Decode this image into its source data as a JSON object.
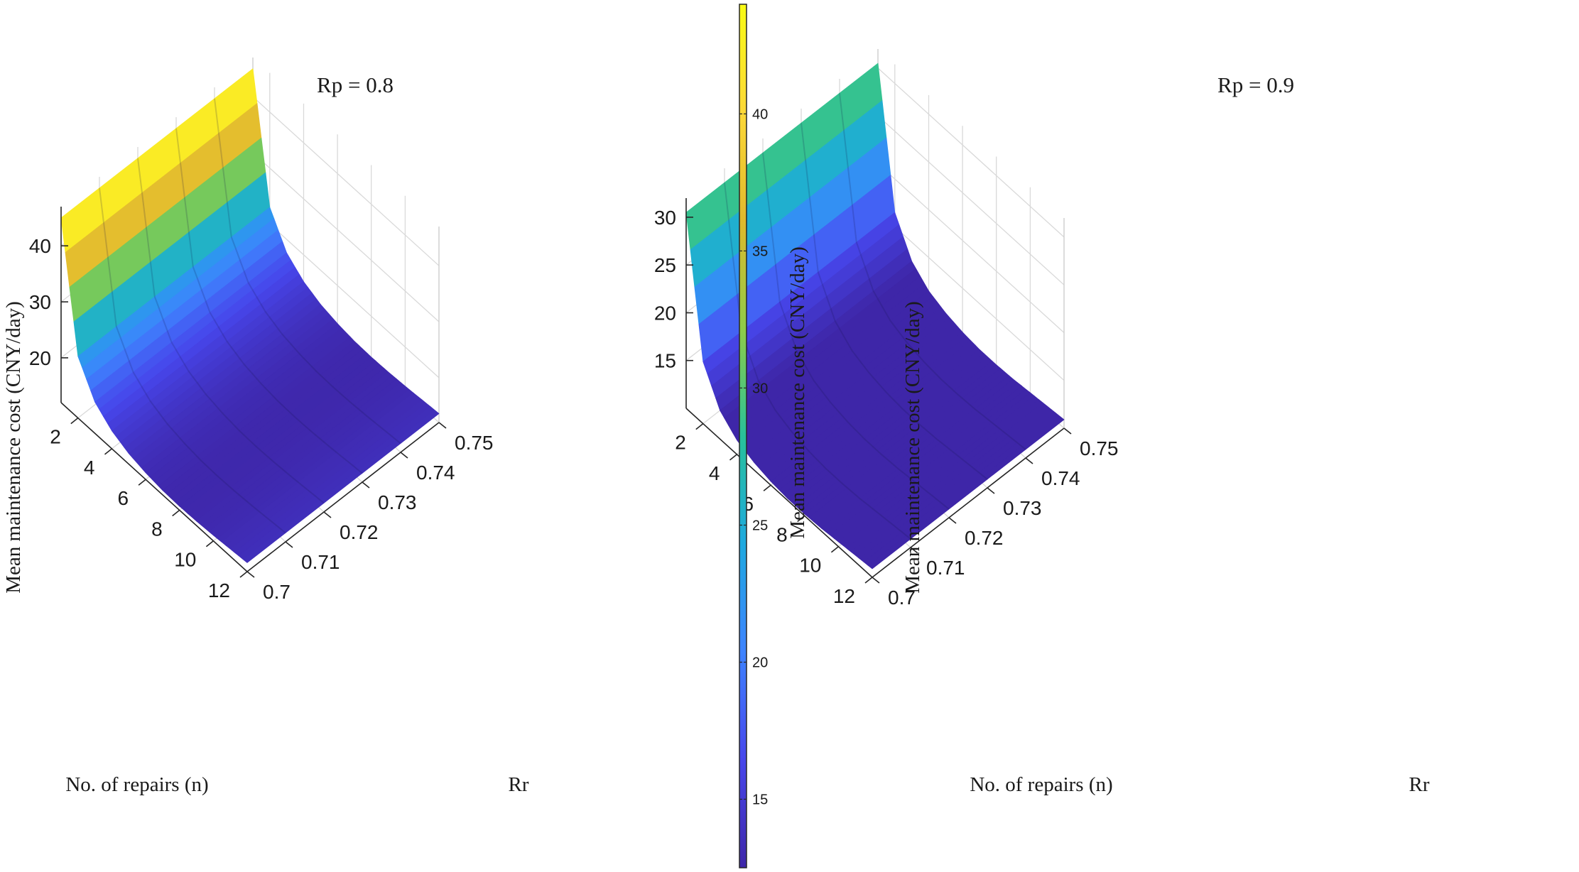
{
  "chart_data": [
    {
      "type": "surface",
      "title": "Rp = 0.8",
      "xlabel": "No. of repairs (n)",
      "ylabel": "Rr",
      "zlabel": "Mean maintenance cost (CNY/day)",
      "n_ticks": [
        "2",
        "4",
        "6",
        "8",
        "10",
        "12"
      ],
      "rr_ticks": [
        "0.7",
        "0.71",
        "0.72",
        "0.73",
        "0.74",
        "0.75"
      ],
      "z_ticks": [
        "20",
        "30",
        "40"
      ],
      "n_range": [
        1,
        12
      ],
      "rr_range": [
        0.7,
        0.75
      ],
      "z_range": [
        12,
        47
      ],
      "surface": {
        "n": [
          1,
          2,
          3,
          4,
          5,
          6,
          7,
          8,
          9,
          10,
          11,
          12
        ],
        "rr": [
          0.7,
          0.71,
          0.72,
          0.73,
          0.74,
          0.75
        ],
        "cost": [
          45,
          23,
          17.6,
          15.2,
          13.9,
          13.2,
          12.8,
          12.7,
          12.8,
          13.0,
          13.3,
          13.6
        ]
      }
    },
    {
      "type": "surface",
      "title": "Rp = 0.9",
      "xlabel": "No. of repairs (n)",
      "ylabel": "Rr",
      "zlabel": "Mean maintenance cost (CNY/day)",
      "n_ticks": [
        "2",
        "4",
        "6",
        "8",
        "10",
        "12"
      ],
      "rr_ticks": [
        "0.7",
        "0.71",
        "0.72",
        "0.73",
        "0.74",
        "0.75"
      ],
      "z_ticks": [
        "15",
        "20",
        "25",
        "30"
      ],
      "n_range": [
        1,
        12
      ],
      "rr_range": [
        0.7,
        0.75
      ],
      "z_range": [
        10,
        32
      ],
      "surface": {
        "n": [
          1,
          2,
          3,
          4,
          5,
          6,
          7,
          8,
          9,
          10,
          11,
          12
        ],
        "rr": [
          0.7,
          0.71,
          0.72,
          0.73,
          0.74,
          0.75
        ],
        "cost": [
          30.5,
          16.5,
          13.0,
          11.5,
          10.8,
          10.4,
          10.2,
          10.2,
          10.3,
          10.5,
          10.7,
          10.9
        ]
      }
    }
  ],
  "colorbar": {
    "label": "Mean maintenance cost (CNY/day)",
    "range": [
      12.5,
      44
    ],
    "ticks": [
      "15",
      "20",
      "25",
      "30",
      "35",
      "40"
    ],
    "colormap": [
      "#3e26a8",
      "#4746eb",
      "#3e83fe",
      "#1ea9df",
      "#28c19a",
      "#8fcc48",
      "#e0b92c",
      "#fcd838",
      "#f9fb15"
    ]
  }
}
